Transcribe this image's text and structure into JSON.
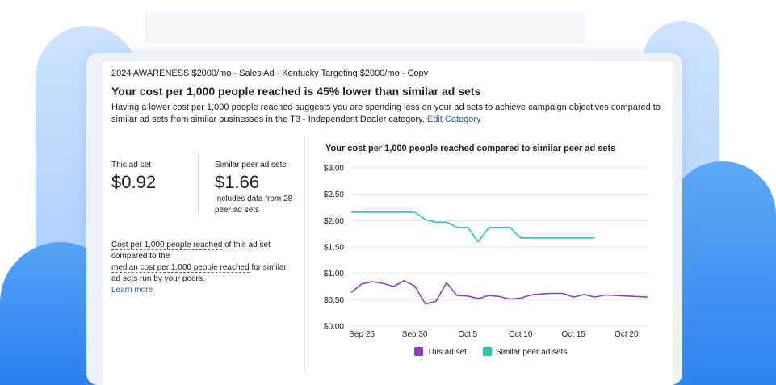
{
  "header": {
    "breadcrumb": "2024 AWARENESS $2000/mo - Sales Ad - Kentucky Targeting $2000/mo - Copy",
    "headline": "Your cost per 1,000 people reached is 45% lower than similar ad sets",
    "description": "Having a lower cost per 1,000 people reached suggests you are spending less on your ad sets to achieve campaign objectives compared to similar ad sets from similar businesses in the T3 - Independent Dealer category.",
    "edit_link": "Edit Category"
  },
  "stats": {
    "this_label": "This ad set",
    "this_value": "$0.92",
    "peer_label": "Similar peer ad sets",
    "peer_value": "$1.66",
    "peer_note": "Includes data from 28 peer ad sets"
  },
  "explanation": {
    "term1": "Cost per 1,000 people reached",
    "text1": " of this ad set compared to the",
    "term2": "median cost per 1,000 people reached",
    "text2": " for similar ad sets run by your peers.",
    "learn_more": "Learn more"
  },
  "chart_data": {
    "type": "line",
    "title": "Your cost per 1,000 people reached compared to similar peer ad sets",
    "x_tick_labels": [
      "Sep 25",
      "Sep 30",
      "Oct 5",
      "Oct 10",
      "Oct 15",
      "Oct 20"
    ],
    "y_tick_labels": [
      "$3.00",
      "$2.50",
      "$2.00",
      "$1.50",
      "$1.00",
      "$0.50",
      "$0.00"
    ],
    "ylim": [
      0,
      3
    ],
    "x_start": "Sep 24",
    "x_end": "Oct 22",
    "grid": true,
    "legend_position": "bottom",
    "series": [
      {
        "name": "This ad set",
        "color": "#8e3fbf",
        "values": [
          [
            "Sep 24",
            0.64
          ],
          [
            "Sep 25",
            0.8
          ],
          [
            "Sep 26",
            0.84
          ],
          [
            "Sep 27",
            0.81
          ],
          [
            "Sep 28",
            0.75
          ],
          [
            "Sep 29",
            0.86
          ],
          [
            "Sep 30",
            0.76
          ],
          [
            "Oct 1",
            0.42
          ],
          [
            "Oct 2",
            0.47
          ],
          [
            "Oct 3",
            0.82
          ],
          [
            "Oct 4",
            0.58
          ],
          [
            "Oct 5",
            0.57
          ],
          [
            "Oct 6",
            0.52
          ],
          [
            "Oct 7",
            0.58
          ],
          [
            "Oct 8",
            0.56
          ],
          [
            "Oct 9",
            0.51
          ],
          [
            "Oct 10",
            0.53
          ],
          [
            "Oct 11",
            0.59
          ],
          [
            "Oct 12",
            0.61
          ],
          [
            "Oct 13",
            0.62
          ],
          [
            "Oct 14",
            0.62
          ],
          [
            "Oct 15",
            0.55
          ],
          [
            "Oct 16",
            0.6
          ],
          [
            "Oct 17",
            0.55
          ],
          [
            "Oct 18",
            0.59
          ],
          [
            "Oct 19",
            0.58
          ],
          [
            "Oct 20",
            0.57
          ],
          [
            "Oct 21",
            0.56
          ],
          [
            "Oct 22",
            0.55
          ]
        ]
      },
      {
        "name": "Similar peer ad sets",
        "color": "#2fc4b2",
        "values": [
          [
            "Sep 24",
            2.16
          ],
          [
            "Sep 25",
            2.16
          ],
          [
            "Sep 26",
            2.16
          ],
          [
            "Sep 27",
            2.16
          ],
          [
            "Sep 28",
            2.16
          ],
          [
            "Sep 29",
            2.16
          ],
          [
            "Sep 30",
            2.16
          ],
          [
            "Oct 1",
            2.02
          ],
          [
            "Oct 2",
            1.97
          ],
          [
            "Oct 3",
            1.97
          ],
          [
            "Oct 4",
            1.87
          ],
          [
            "Oct 5",
            1.87
          ],
          [
            "Oct 6",
            1.6
          ],
          [
            "Oct 7",
            1.87
          ],
          [
            "Oct 8",
            1.87
          ],
          [
            "Oct 9",
            1.87
          ],
          [
            "Oct 10",
            1.67
          ],
          [
            "Oct 11",
            1.67
          ],
          [
            "Oct 12",
            1.67
          ],
          [
            "Oct 13",
            1.67
          ],
          [
            "Oct 14",
            1.67
          ],
          [
            "Oct 15",
            1.67
          ],
          [
            "Oct 16",
            1.67
          ],
          [
            "Oct 17",
            1.67
          ]
        ]
      }
    ]
  }
}
